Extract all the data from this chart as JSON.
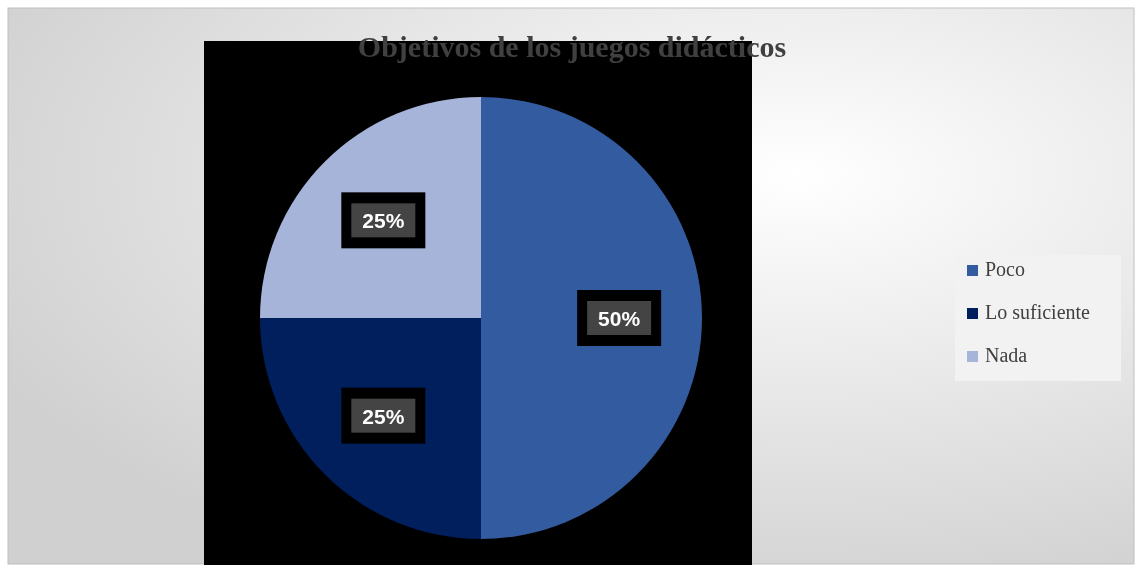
{
  "chart_data": {
    "type": "pie",
    "title": "Objetivos  de los juegos didácticos",
    "categories": [
      "Poco",
      "Lo suficiente",
      "Nada"
    ],
    "values": [
      50,
      25,
      25
    ],
    "colors": [
      "#335b9f",
      "#001f5c",
      "#a6b4da"
    ],
    "value_labels": [
      "50%",
      "25%",
      "25%"
    ],
    "legend": "right"
  }
}
